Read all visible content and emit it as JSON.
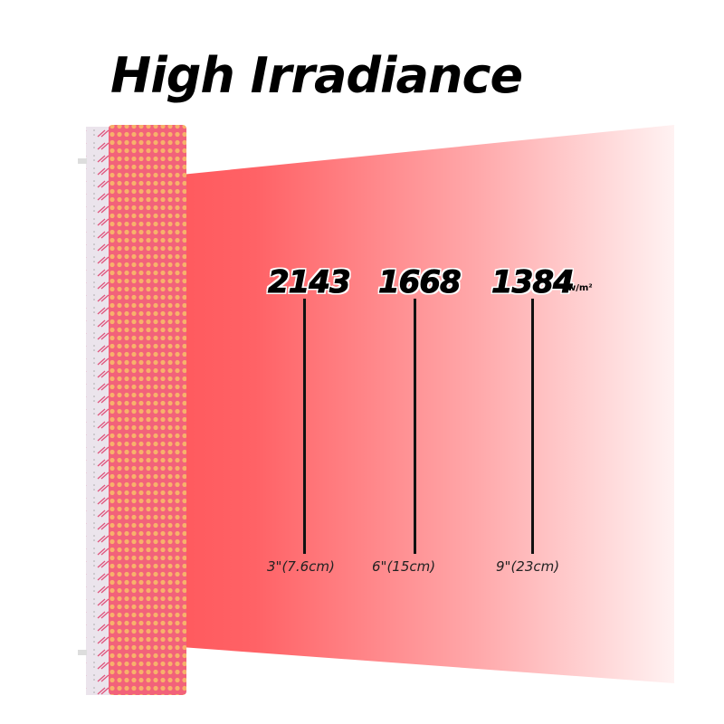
{
  "title": "High Irradiance",
  "unit": "w/m²",
  "measurements": [
    {
      "value": "2143",
      "distance": "3\"(7.6cm)"
    },
    {
      "value": "1668",
      "distance": "6\"(15cm)"
    },
    {
      "value": "1384",
      "distance": "9\"(23cm)"
    }
  ],
  "colors": {
    "beam": "#ff5f63",
    "panel_face": "#f2627a",
    "panel_side": "#e8e2ea",
    "led": "#f7b26a"
  }
}
